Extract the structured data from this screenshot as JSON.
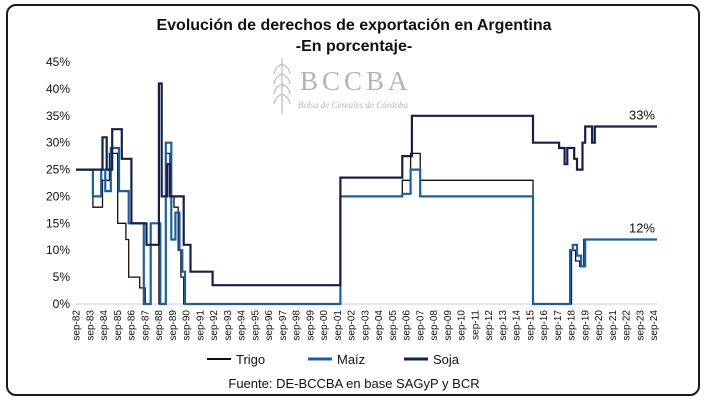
{
  "chart_data": {
    "type": "line",
    "title": "Evolución de derechos de exportación en Argentina",
    "subtitle": "-En porcentaje-",
    "source": "Fuente: DE-BCCBA en base SAGyP y BCR",
    "watermark": {
      "name": "BCCBA",
      "subtitle": "Bolsa de Cereales de Córdoba"
    },
    "ylim": [
      0,
      45
    ],
    "y_ticks": [
      "0%",
      "5%",
      "10%",
      "15%",
      "20%",
      "25%",
      "30%",
      "35%",
      "40%",
      "45%"
    ],
    "xlim": [
      1982.67,
      2024.92
    ],
    "x_ticks": [
      "sep-82",
      "sep-83",
      "sep-84",
      "sep-85",
      "sep-86",
      "sep-87",
      "sep-88",
      "sep-89",
      "sep-90",
      "sep-91",
      "sep-92",
      "sep-93",
      "sep-94",
      "sep-95",
      "sep-96",
      "sep-97",
      "sep-98",
      "sep-99",
      "sep-00",
      "sep-01",
      "sep-02",
      "sep-03",
      "sep-04",
      "sep-05",
      "sep-06",
      "sep-07",
      "sep-08",
      "sep-09",
      "sep-10",
      "sep-11",
      "sep-12",
      "sep-13",
      "sep-14",
      "sep-15",
      "sep-16",
      "sep-17",
      "sep-18",
      "sep-19",
      "sep-20",
      "sep-21",
      "sep-22",
      "sep-23",
      "sep-24"
    ],
    "annotations": [
      {
        "text": "33%",
        "series": "Soja",
        "value": 33
      },
      {
        "text": "12%",
        "series": "Maíz",
        "value": 12
      }
    ],
    "series": [
      {
        "name": "Trigo",
        "color": "#111111",
        "width": 1.3,
        "points": [
          [
            1982.67,
            25
          ],
          [
            1983.9,
            25
          ],
          [
            1983.9,
            18
          ],
          [
            1984.6,
            18
          ],
          [
            1984.6,
            23
          ],
          [
            1985.1,
            23
          ],
          [
            1985.1,
            28
          ],
          [
            1985.7,
            28
          ],
          [
            1985.7,
            15
          ],
          [
            1986.3,
            15
          ],
          [
            1986.3,
            12
          ],
          [
            1986.5,
            12
          ],
          [
            1986.5,
            5
          ],
          [
            1987.3,
            5
          ],
          [
            1987.3,
            3
          ],
          [
            1987.7,
            3
          ],
          [
            1987.7,
            0
          ],
          [
            1988.1,
            0
          ],
          [
            1988.1,
            15
          ],
          [
            1988.7,
            15
          ],
          [
            1988.7,
            0
          ],
          [
            1989.2,
            0
          ],
          [
            1989.2,
            28
          ],
          [
            1989.5,
            28
          ],
          [
            1989.5,
            20
          ],
          [
            1989.8,
            20
          ],
          [
            1989.8,
            18
          ],
          [
            1990.1,
            18
          ],
          [
            1990.1,
            10
          ],
          [
            1990.3,
            10
          ],
          [
            1990.3,
            5
          ],
          [
            1990.5,
            5
          ],
          [
            1990.5,
            0
          ],
          [
            2001.9,
            0
          ],
          [
            2001.9,
            20
          ],
          [
            2006.4,
            20
          ],
          [
            2006.4,
            23
          ],
          [
            2007.0,
            23
          ],
          [
            2007.0,
            28
          ],
          [
            2007.7,
            28
          ],
          [
            2007.7,
            23
          ],
          [
            2015.9,
            23
          ],
          [
            2015.9,
            0
          ],
          [
            2018.7,
            0
          ],
          [
            2018.7,
            10
          ],
          [
            2019.0,
            10
          ],
          [
            2019.0,
            8
          ],
          [
            2019.3,
            8
          ],
          [
            2019.3,
            7
          ],
          [
            2019.6,
            7
          ],
          [
            2019.6,
            12
          ],
          [
            2024.92,
            12
          ]
        ]
      },
      {
        "name": "Maíz",
        "color": "#1f5f99",
        "width": 2.2,
        "points": [
          [
            1982.67,
            25
          ],
          [
            1983.9,
            25
          ],
          [
            1983.9,
            20
          ],
          [
            1984.5,
            20
          ],
          [
            1984.5,
            25
          ],
          [
            1984.8,
            25
          ],
          [
            1984.8,
            21
          ],
          [
            1985.2,
            21
          ],
          [
            1985.2,
            29
          ],
          [
            1985.8,
            29
          ],
          [
            1985.8,
            21
          ],
          [
            1986.5,
            21
          ],
          [
            1986.5,
            15
          ],
          [
            1987.6,
            15
          ],
          [
            1987.6,
            0
          ],
          [
            1988.1,
            0
          ],
          [
            1988.1,
            15
          ],
          [
            1988.8,
            15
          ],
          [
            1988.8,
            0
          ],
          [
            1989.2,
            0
          ],
          [
            1989.2,
            30
          ],
          [
            1989.6,
            30
          ],
          [
            1989.6,
            12
          ],
          [
            1989.9,
            12
          ],
          [
            1989.9,
            17
          ],
          [
            1990.2,
            17
          ],
          [
            1990.2,
            10
          ],
          [
            1990.4,
            10
          ],
          [
            1990.4,
            6
          ],
          [
            1990.6,
            6
          ],
          [
            1990.6,
            0
          ],
          [
            2001.9,
            0
          ],
          [
            2001.9,
            20
          ],
          [
            2006.4,
            20
          ],
          [
            2006.4,
            20.5
          ],
          [
            2007.0,
            20.5
          ],
          [
            2007.0,
            25
          ],
          [
            2007.7,
            25
          ],
          [
            2007.7,
            20
          ],
          [
            2015.9,
            20
          ],
          [
            2015.9,
            0
          ],
          [
            2018.6,
            0
          ],
          [
            2018.6,
            10
          ],
          [
            2018.8,
            10
          ],
          [
            2018.8,
            11
          ],
          [
            2019.1,
            11
          ],
          [
            2019.1,
            9
          ],
          [
            2019.4,
            9
          ],
          [
            2019.4,
            7
          ],
          [
            2019.7,
            7
          ],
          [
            2019.7,
            12
          ],
          [
            2024.92,
            12
          ]
        ]
      },
      {
        "name": "Soja",
        "color": "#152048",
        "width": 2.2,
        "points": [
          [
            1982.67,
            25
          ],
          [
            1984.6,
            25
          ],
          [
            1984.6,
            31
          ],
          [
            1984.9,
            31
          ],
          [
            1984.9,
            25
          ],
          [
            1985.3,
            25
          ],
          [
            1985.3,
            32.5
          ],
          [
            1986.0,
            32.5
          ],
          [
            1986.0,
            27
          ],
          [
            1986.7,
            27
          ],
          [
            1986.7,
            15
          ],
          [
            1987.8,
            15
          ],
          [
            1987.8,
            11
          ],
          [
            1988.7,
            11
          ],
          [
            1988.7,
            41
          ],
          [
            1988.9,
            41
          ],
          [
            1988.9,
            20
          ],
          [
            1989.3,
            20
          ],
          [
            1989.3,
            26
          ],
          [
            1989.5,
            26
          ],
          [
            1989.5,
            20
          ],
          [
            1990.5,
            20
          ],
          [
            1990.5,
            11
          ],
          [
            1991.0,
            11
          ],
          [
            1991.0,
            6
          ],
          [
            1992.6,
            6
          ],
          [
            1992.6,
            3.5
          ],
          [
            2001.9,
            3.5
          ],
          [
            2001.9,
            23.5
          ],
          [
            2006.4,
            23.5
          ],
          [
            2006.4,
            27.5
          ],
          [
            2007.1,
            27.5
          ],
          [
            2007.1,
            35
          ],
          [
            2015.9,
            35
          ],
          [
            2015.9,
            30
          ],
          [
            2017.8,
            30
          ],
          [
            2017.8,
            29
          ],
          [
            2018.2,
            29
          ],
          [
            2018.2,
            26
          ],
          [
            2018.4,
            26
          ],
          [
            2018.4,
            29
          ],
          [
            2018.9,
            29
          ],
          [
            2018.9,
            27
          ],
          [
            2019.1,
            27
          ],
          [
            2019.1,
            25
          ],
          [
            2019.5,
            25
          ],
          [
            2019.5,
            30
          ],
          [
            2019.7,
            30
          ],
          [
            2019.7,
            33
          ],
          [
            2020.2,
            33
          ],
          [
            2020.2,
            30
          ],
          [
            2020.4,
            30
          ],
          [
            2020.4,
            33
          ],
          [
            2024.92,
            33
          ]
        ]
      }
    ]
  }
}
